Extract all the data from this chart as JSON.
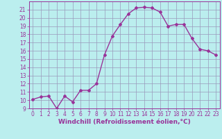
{
  "x": [
    0,
    1,
    2,
    3,
    4,
    5,
    6,
    7,
    8,
    9,
    10,
    11,
    12,
    13,
    14,
    15,
    16,
    17,
    18,
    19,
    20,
    21,
    22,
    23
  ],
  "y": [
    10.1,
    10.4,
    10.5,
    9.0,
    10.5,
    9.8,
    11.2,
    11.2,
    12.0,
    15.5,
    17.8,
    19.2,
    20.5,
    21.2,
    21.3,
    21.2,
    20.7,
    19.0,
    19.2,
    19.2,
    17.5,
    16.2,
    16.0,
    15.5
  ],
  "color": "#993399",
  "bg_color": "#bbeeee",
  "grid_color": "#9999bb",
  "xlabel": "Windchill (Refroidissement éolien,°C)",
  "ylim": [
    9,
    22
  ],
  "xlim": [
    -0.5,
    23.5
  ],
  "yticks": [
    9,
    10,
    11,
    12,
    13,
    14,
    15,
    16,
    17,
    18,
    19,
    20,
    21
  ],
  "xticks": [
    0,
    1,
    2,
    3,
    4,
    5,
    6,
    7,
    8,
    9,
    10,
    11,
    12,
    13,
    14,
    15,
    16,
    17,
    18,
    19,
    20,
    21,
    22,
    23
  ],
  "marker": "D",
  "marker_size": 2.0,
  "line_width": 1.0,
  "xlabel_fontsize": 6.5,
  "tick_fontsize": 5.5
}
